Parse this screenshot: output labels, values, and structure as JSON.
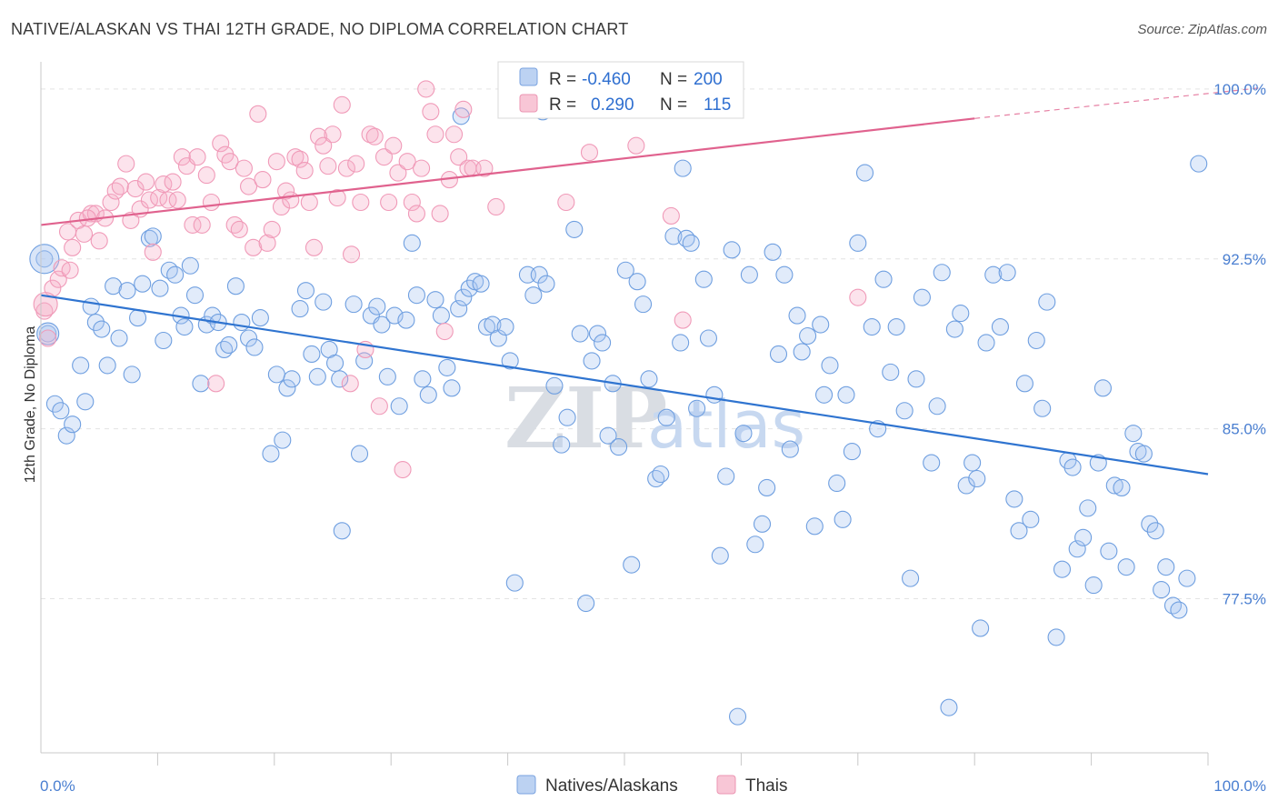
{
  "title": "NATIVE/ALASKAN VS THAI 12TH GRADE, NO DIPLOMA CORRELATION CHART",
  "source": "Source: ZipAtlas.com",
  "watermark": {
    "zip": "ZIP",
    "atlas": "atlas"
  },
  "chart_data": {
    "type": "scatter",
    "ylabel": "12th Grade, No Diploma",
    "xlim": [
      0,
      100
    ],
    "ylim": [
      70.7,
      101.2
    ],
    "y_ticks": [
      {
        "value": 100.0,
        "label": "100.0%"
      },
      {
        "value": 92.5,
        "label": "92.5%"
      },
      {
        "value": 85.0,
        "label": "85.0%"
      },
      {
        "value": 77.5,
        "label": "77.5%"
      }
    ],
    "x_tick_labels": {
      "left": "0.0%",
      "right": "100.0%"
    },
    "grid": true,
    "legend": {
      "placement": "top-center",
      "rows": [
        {
          "r_label": "R =",
          "r_value": "-0.460",
          "n_label": "N =",
          "n_value": "200"
        },
        {
          "r_label": "R =",
          "r_value": "0.290",
          "n_label": "N =",
          "n_value": "115"
        }
      ]
    },
    "series": [
      {
        "name": "Natives/Alaskans",
        "color": "#6f9fe0",
        "line_color": "#2f74d0",
        "trend": {
          "x": [
            0,
            100
          ],
          "y": [
            90.9,
            83.0
          ]
        },
        "points": [
          [
            0.3,
            92.5
          ],
          [
            0.6,
            89.2
          ],
          [
            1.2,
            86.1
          ],
          [
            1.7,
            85.8
          ],
          [
            2.2,
            84.7
          ],
          [
            2.7,
            85.2
          ],
          [
            3.4,
            87.8
          ],
          [
            3.8,
            86.2
          ],
          [
            4.3,
            90.4
          ],
          [
            4.7,
            89.7
          ],
          [
            5.2,
            89.4
          ],
          [
            5.7,
            87.8
          ],
          [
            6.2,
            91.3
          ],
          [
            6.7,
            89.0
          ],
          [
            7.4,
            91.1
          ],
          [
            7.8,
            87.4
          ],
          [
            8.3,
            89.9
          ],
          [
            8.7,
            91.4
          ],
          [
            9.3,
            93.4
          ],
          [
            9.6,
            93.5
          ],
          [
            10.2,
            91.2
          ],
          [
            10.5,
            88.9
          ],
          [
            11.0,
            92.0
          ],
          [
            11.5,
            91.8
          ],
          [
            12.0,
            90.0
          ],
          [
            12.3,
            89.5
          ],
          [
            12.8,
            92.2
          ],
          [
            13.2,
            90.9
          ],
          [
            13.7,
            87.0
          ],
          [
            14.2,
            89.6
          ],
          [
            14.7,
            90.0
          ],
          [
            15.2,
            89.7
          ],
          [
            15.7,
            88.5
          ],
          [
            16.1,
            88.7
          ],
          [
            16.7,
            91.3
          ],
          [
            17.2,
            89.7
          ],
          [
            17.8,
            89.0
          ],
          [
            18.3,
            88.6
          ],
          [
            18.8,
            89.9
          ],
          [
            19.7,
            83.9
          ],
          [
            20.2,
            87.4
          ],
          [
            20.7,
            84.5
          ],
          [
            21.1,
            86.8
          ],
          [
            21.5,
            87.2
          ],
          [
            22.2,
            90.3
          ],
          [
            22.7,
            91.1
          ],
          [
            23.2,
            88.3
          ],
          [
            23.7,
            87.3
          ],
          [
            24.2,
            90.6
          ],
          [
            24.7,
            88.5
          ],
          [
            25.2,
            87.9
          ],
          [
            25.6,
            87.2
          ],
          [
            25.8,
            80.5
          ],
          [
            26.8,
            90.5
          ],
          [
            27.3,
            83.9
          ],
          [
            27.7,
            88.0
          ],
          [
            28.3,
            90.0
          ],
          [
            28.8,
            90.4
          ],
          [
            29.2,
            89.6
          ],
          [
            29.7,
            87.3
          ],
          [
            30.3,
            90.0
          ],
          [
            30.7,
            86.0
          ],
          [
            31.3,
            89.8
          ],
          [
            31.8,
            93.2
          ],
          [
            32.2,
            90.9
          ],
          [
            32.7,
            87.2
          ],
          [
            33.2,
            86.5
          ],
          [
            33.8,
            90.7
          ],
          [
            34.3,
            90.0
          ],
          [
            34.8,
            87.7
          ],
          [
            35.2,
            86.8
          ],
          [
            35.8,
            90.3
          ],
          [
            36.2,
            90.8
          ],
          [
            36.7,
            91.2
          ],
          [
            37.2,
            91.5
          ],
          [
            37.7,
            91.4
          ],
          [
            38.2,
            89.5
          ],
          [
            38.7,
            89.6
          ],
          [
            39.2,
            89.0
          ],
          [
            39.8,
            89.5
          ],
          [
            40.2,
            88.0
          ],
          [
            40.6,
            78.2
          ],
          [
            41.7,
            91.8
          ],
          [
            42.2,
            90.9
          ],
          [
            42.7,
            91.8
          ],
          [
            43.3,
            91.4
          ],
          [
            44.0,
            86.9
          ],
          [
            44.6,
            84.3
          ],
          [
            45.1,
            85.5
          ],
          [
            45.7,
            93.8
          ],
          [
            46.2,
            89.2
          ],
          [
            46.7,
            77.3
          ],
          [
            47.2,
            88.0
          ],
          [
            47.7,
            89.2
          ],
          [
            48.1,
            88.8
          ],
          [
            48.6,
            84.7
          ],
          [
            49.0,
            87.0
          ],
          [
            49.5,
            84.2
          ],
          [
            50.1,
            92.0
          ],
          [
            50.6,
            79.0
          ],
          [
            51.1,
            91.5
          ],
          [
            51.6,
            90.5
          ],
          [
            52.1,
            87.2
          ],
          [
            52.7,
            82.8
          ],
          [
            53.1,
            83.0
          ],
          [
            53.6,
            85.5
          ],
          [
            54.2,
            93.5
          ],
          [
            54.8,
            88.8
          ],
          [
            55.3,
            93.4
          ],
          [
            55.7,
            93.2
          ],
          [
            56.2,
            85.9
          ],
          [
            56.8,
            91.6
          ],
          [
            57.2,
            89.0
          ],
          [
            57.7,
            86.5
          ],
          [
            58.2,
            79.4
          ],
          [
            58.7,
            82.9
          ],
          [
            59.2,
            92.9
          ],
          [
            59.7,
            72.3
          ],
          [
            60.2,
            84.8
          ],
          [
            60.7,
            91.8
          ],
          [
            61.2,
            79.9
          ],
          [
            61.8,
            80.8
          ],
          [
            62.2,
            82.4
          ],
          [
            62.7,
            92.8
          ],
          [
            63.2,
            88.3
          ],
          [
            63.7,
            91.8
          ],
          [
            64.2,
            84.1
          ],
          [
            64.8,
            90.0
          ],
          [
            65.2,
            88.4
          ],
          [
            65.7,
            89.1
          ],
          [
            66.3,
            80.7
          ],
          [
            66.8,
            89.6
          ],
          [
            67.1,
            86.5
          ],
          [
            67.6,
            87.8
          ],
          [
            68.2,
            82.6
          ],
          [
            68.7,
            81.0
          ],
          [
            69.0,
            86.5
          ],
          [
            69.5,
            84.0
          ],
          [
            70.0,
            93.2
          ],
          [
            70.6,
            96.3
          ],
          [
            71.2,
            89.5
          ],
          [
            71.7,
            85.0
          ],
          [
            72.2,
            91.6
          ],
          [
            72.8,
            87.5
          ],
          [
            73.3,
            89.5
          ],
          [
            74.0,
            85.8
          ],
          [
            74.5,
            78.4
          ],
          [
            75.0,
            87.2
          ],
          [
            75.5,
            90.8
          ],
          [
            76.3,
            83.5
          ],
          [
            76.8,
            86.0
          ],
          [
            77.2,
            91.9
          ],
          [
            77.8,
            72.7
          ],
          [
            78.3,
            89.4
          ],
          [
            78.8,
            90.1
          ],
          [
            79.3,
            82.5
          ],
          [
            79.8,
            83.5
          ],
          [
            80.2,
            82.8
          ],
          [
            80.5,
            76.2
          ],
          [
            81.0,
            88.8
          ],
          [
            81.6,
            91.8
          ],
          [
            82.2,
            89.5
          ],
          [
            82.8,
            91.9
          ],
          [
            83.4,
            81.9
          ],
          [
            83.8,
            80.5
          ],
          [
            84.3,
            87.0
          ],
          [
            84.8,
            81.0
          ],
          [
            85.3,
            88.9
          ],
          [
            85.8,
            85.9
          ],
          [
            86.2,
            90.6
          ],
          [
            87.0,
            75.8
          ],
          [
            87.5,
            78.8
          ],
          [
            88.0,
            83.6
          ],
          [
            88.4,
            83.3
          ],
          [
            88.8,
            79.7
          ],
          [
            89.3,
            80.2
          ],
          [
            89.7,
            81.5
          ],
          [
            90.2,
            78.1
          ],
          [
            90.6,
            83.5
          ],
          [
            91.0,
            86.8
          ],
          [
            91.5,
            79.6
          ],
          [
            92.0,
            82.5
          ],
          [
            92.6,
            82.4
          ],
          [
            93.0,
            78.9
          ],
          [
            93.6,
            84.8
          ],
          [
            94.0,
            84.0
          ],
          [
            94.5,
            83.9
          ],
          [
            95.0,
            80.8
          ],
          [
            95.5,
            80.5
          ],
          [
            96.0,
            77.9
          ],
          [
            96.4,
            78.9
          ],
          [
            97.0,
            77.2
          ],
          [
            97.5,
            77.0
          ],
          [
            98.2,
            78.4
          ],
          [
            99.2,
            96.7
          ],
          [
            55.0,
            96.5
          ],
          [
            36.0,
            98.8
          ],
          [
            43.0,
            99.0
          ]
        ]
      },
      {
        "name": "Thais",
        "color": "#f09ab8",
        "line_color": "#e0628e",
        "trend": {
          "x": [
            0,
            80
          ],
          "y": [
            94.0,
            98.7
          ]
        },
        "trend_dashed": {
          "x": [
            80,
            100
          ],
          "y": [
            98.7,
            99.9
          ]
        },
        "points": [
          [
            0.3,
            90.2
          ],
          [
            0.6,
            89.0
          ],
          [
            1.0,
            91.2
          ],
          [
            1.5,
            91.6
          ],
          [
            1.8,
            92.1
          ],
          [
            2.3,
            93.7
          ],
          [
            2.7,
            93.0
          ],
          [
            3.2,
            94.2
          ],
          [
            3.7,
            93.6
          ],
          [
            4.3,
            94.5
          ],
          [
            4.7,
            94.5
          ],
          [
            5.0,
            93.3
          ],
          [
            5.5,
            94.3
          ],
          [
            6.0,
            95.0
          ],
          [
            6.4,
            95.5
          ],
          [
            6.8,
            95.7
          ],
          [
            7.3,
            96.7
          ],
          [
            7.7,
            94.2
          ],
          [
            8.1,
            95.6
          ],
          [
            8.5,
            94.7
          ],
          [
            9.0,
            95.9
          ],
          [
            9.3,
            95.1
          ],
          [
            9.6,
            92.8
          ],
          [
            10.1,
            95.2
          ],
          [
            10.5,
            95.8
          ],
          [
            10.9,
            95.1
          ],
          [
            11.3,
            95.9
          ],
          [
            11.7,
            95.1
          ],
          [
            12.1,
            97.0
          ],
          [
            12.5,
            96.6
          ],
          [
            13.0,
            94.0
          ],
          [
            13.4,
            97.0
          ],
          [
            13.8,
            94.0
          ],
          [
            14.2,
            96.2
          ],
          [
            14.6,
            95.0
          ],
          [
            15.0,
            87.0
          ],
          [
            15.4,
            97.6
          ],
          [
            15.8,
            97.1
          ],
          [
            16.2,
            96.8
          ],
          [
            16.6,
            94.0
          ],
          [
            17.0,
            93.8
          ],
          [
            17.4,
            96.5
          ],
          [
            17.8,
            95.7
          ],
          [
            18.2,
            93.0
          ],
          [
            18.6,
            98.9
          ],
          [
            19.0,
            96.0
          ],
          [
            19.4,
            93.2
          ],
          [
            19.8,
            93.8
          ],
          [
            20.2,
            96.8
          ],
          [
            20.6,
            94.8
          ],
          [
            21.0,
            95.5
          ],
          [
            21.4,
            95.1
          ],
          [
            21.8,
            97.0
          ],
          [
            22.2,
            96.9
          ],
          [
            22.6,
            96.4
          ],
          [
            23.0,
            95.0
          ],
          [
            23.4,
            93.0
          ],
          [
            23.8,
            97.9
          ],
          [
            24.2,
            97.5
          ],
          [
            24.6,
            96.6
          ],
          [
            25.0,
            98.0
          ],
          [
            25.4,
            95.2
          ],
          [
            25.8,
            99.3
          ],
          [
            26.2,
            96.5
          ],
          [
            26.6,
            92.7
          ],
          [
            27.0,
            96.7
          ],
          [
            27.4,
            95.0
          ],
          [
            27.8,
            88.5
          ],
          [
            28.2,
            98.0
          ],
          [
            28.6,
            97.9
          ],
          [
            29.0,
            86.0
          ],
          [
            29.4,
            97.0
          ],
          [
            29.8,
            95.0
          ],
          [
            30.2,
            97.5
          ],
          [
            30.6,
            96.3
          ],
          [
            31.0,
            83.2
          ],
          [
            31.4,
            96.8
          ],
          [
            31.8,
            95.0
          ],
          [
            32.2,
            94.5
          ],
          [
            32.6,
            96.5
          ],
          [
            33.0,
            100.0
          ],
          [
            33.4,
            99.0
          ],
          [
            33.8,
            98.0
          ],
          [
            34.2,
            94.5
          ],
          [
            34.6,
            89.3
          ],
          [
            35.0,
            96.0
          ],
          [
            35.4,
            98.0
          ],
          [
            35.8,
            97.0
          ],
          [
            36.2,
            99.1
          ],
          [
            36.6,
            96.5
          ],
          [
            37.0,
            96.5
          ],
          [
            38.0,
            96.5
          ],
          [
            39.0,
            94.8
          ],
          [
            41.0,
            100.0
          ],
          [
            42.0,
            99.5
          ],
          [
            45.0,
            95.0
          ],
          [
            47.0,
            97.2
          ],
          [
            51.0,
            97.5
          ],
          [
            54.0,
            94.4
          ],
          [
            55.0,
            89.8
          ],
          [
            70.0,
            90.8
          ],
          [
            26.5,
            87.0
          ],
          [
            4.0,
            94.3
          ],
          [
            2.5,
            92.0
          ]
        ]
      }
    ]
  }
}
